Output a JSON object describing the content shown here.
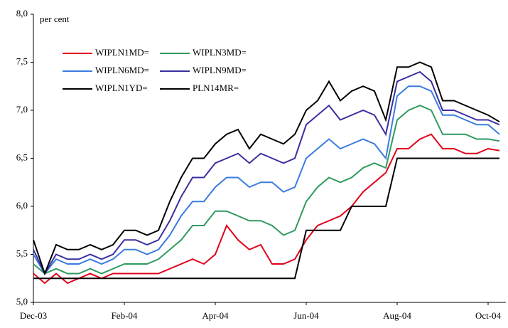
{
  "chart_data": {
    "type": "line",
    "y_label": "per cent",
    "categories": [
      "Dec-03",
      null,
      null,
      null,
      null,
      null,
      null,
      null,
      "Feb-04",
      null,
      null,
      null,
      null,
      null,
      null,
      null,
      "Apr-04",
      null,
      null,
      null,
      null,
      null,
      null,
      null,
      "Jun-04",
      null,
      null,
      null,
      null,
      null,
      null,
      null,
      "Aug-04",
      null,
      null,
      null,
      null,
      null,
      null,
      null,
      "Oct-04",
      null
    ],
    "ylim": [
      5.0,
      8.0
    ],
    "yticks": [
      {
        "value": 5.0,
        "label": "5,0"
      },
      {
        "value": 5.5,
        "label": "5,5"
      },
      {
        "value": 6.0,
        "label": "6,0"
      },
      {
        "value": 6.5,
        "label": "6,5"
      },
      {
        "value": 7.0,
        "label": "7,0"
      },
      {
        "value": 7.5,
        "label": "7,5"
      },
      {
        "value": 8.0,
        "label": "8,0"
      }
    ],
    "series": [
      {
        "name": "WIPLN1MD=",
        "color": "#e0001b",
        "values": [
          5.3,
          5.2,
          5.3,
          5.2,
          5.25,
          5.3,
          5.25,
          5.3,
          5.3,
          5.3,
          5.3,
          5.3,
          5.35,
          5.4,
          5.45,
          5.4,
          5.5,
          5.8,
          5.65,
          5.55,
          5.6,
          5.4,
          5.4,
          5.45,
          5.65,
          5.8,
          5.85,
          5.9,
          6.0,
          6.15,
          6.25,
          6.35,
          6.6,
          6.6,
          6.7,
          6.75,
          6.6,
          6.6,
          6.55,
          6.55,
          6.6,
          6.58
        ]
      },
      {
        "name": "WIPLN3MD=",
        "color": "#2e9a5e",
        "values": [
          5.4,
          5.3,
          5.35,
          5.3,
          5.3,
          5.35,
          5.3,
          5.35,
          5.4,
          5.4,
          5.4,
          5.45,
          5.55,
          5.65,
          5.8,
          5.8,
          5.95,
          5.95,
          5.9,
          5.85,
          5.85,
          5.8,
          5.7,
          5.75,
          6.05,
          6.2,
          6.3,
          6.25,
          6.3,
          6.4,
          6.45,
          6.4,
          6.9,
          7.0,
          7.05,
          7.0,
          6.75,
          6.75,
          6.75,
          6.7,
          6.7,
          6.68
        ]
      },
      {
        "name": "WIPLN6MD=",
        "color": "#3a7be0",
        "values": [
          5.5,
          5.3,
          5.45,
          5.4,
          5.4,
          5.45,
          5.4,
          5.45,
          5.55,
          5.55,
          5.5,
          5.55,
          5.7,
          5.9,
          6.05,
          6.05,
          6.2,
          6.3,
          6.3,
          6.2,
          6.25,
          6.25,
          6.15,
          6.2,
          6.5,
          6.6,
          6.7,
          6.6,
          6.65,
          6.7,
          6.65,
          6.5,
          7.15,
          7.25,
          7.25,
          7.2,
          6.95,
          6.95,
          6.9,
          6.85,
          6.85,
          6.75
        ]
      },
      {
        "name": "WIPLN9MD=",
        "color": "#3a2fa0",
        "values": [
          5.55,
          5.3,
          5.5,
          5.45,
          5.45,
          5.5,
          5.45,
          5.5,
          5.65,
          5.65,
          5.6,
          5.65,
          5.85,
          6.1,
          6.3,
          6.3,
          6.45,
          6.5,
          6.55,
          6.45,
          6.55,
          6.5,
          6.45,
          6.5,
          6.85,
          6.95,
          7.05,
          6.9,
          6.95,
          7.0,
          6.95,
          6.75,
          7.3,
          7.35,
          7.4,
          7.3,
          7.0,
          7.0,
          6.95,
          6.9,
          6.9,
          6.85
        ]
      },
      {
        "name": "WIPLN1YD=",
        "color": "#000000",
        "values": [
          5.65,
          5.3,
          5.6,
          5.55,
          5.55,
          5.6,
          5.55,
          5.6,
          5.75,
          5.75,
          5.7,
          5.75,
          6.05,
          6.3,
          6.5,
          6.5,
          6.65,
          6.75,
          6.8,
          6.6,
          6.75,
          6.7,
          6.65,
          6.75,
          7.0,
          7.1,
          7.3,
          7.1,
          7.2,
          7.25,
          7.2,
          6.9,
          7.45,
          7.45,
          7.5,
          7.45,
          7.1,
          7.1,
          7.05,
          7.0,
          6.95,
          6.88
        ]
      },
      {
        "name": "PLN14MR=",
        "color": "#000000",
        "values": [
          5.25,
          5.25,
          5.25,
          5.25,
          5.25,
          5.25,
          5.25,
          5.25,
          5.25,
          5.25,
          5.25,
          5.25,
          5.25,
          5.25,
          5.25,
          5.25,
          5.25,
          5.25,
          5.25,
          5.25,
          5.25,
          5.25,
          5.25,
          5.25,
          5.75,
          5.75,
          5.75,
          5.75,
          6.0,
          6.0,
          6.0,
          6.0,
          6.5,
          6.5,
          6.5,
          6.5,
          6.5,
          6.5,
          6.5,
          6.5,
          6.5,
          6.5
        ]
      }
    ]
  }
}
